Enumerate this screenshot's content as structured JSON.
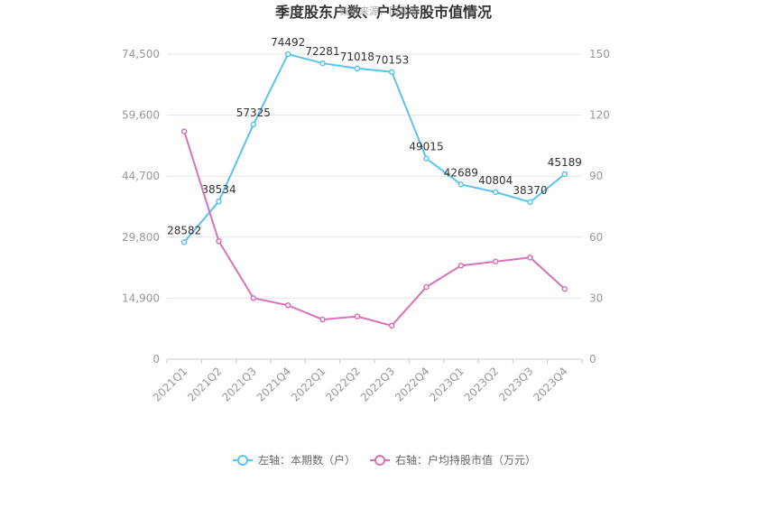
{
  "chart_data": {
    "type": "line",
    "title": "季度股东户数、户均持股市值情况",
    "watermark": "数据来源：同花顺",
    "categories": [
      "2021Q1",
      "2021Q2",
      "2021Q3",
      "2021Q4",
      "2022Q1",
      "2022Q2",
      "2022Q3",
      "2022Q4",
      "2023Q1",
      "2023Q2",
      "2023Q3",
      "2023Q4"
    ],
    "left_axis": {
      "ticks": [
        "0",
        "14,900",
        "29,800",
        "44,700",
        "59,600",
        "74,500"
      ],
      "ylim": [
        0,
        74500
      ]
    },
    "right_axis": {
      "ticks": [
        "0",
        "30",
        "60",
        "90",
        "120",
        "150"
      ],
      "ylim": [
        0,
        150
      ]
    },
    "series": [
      {
        "name": "左轴：本期数（户）",
        "axis": "left",
        "color": "#5bc3f0",
        "values": [
          28582,
          38534,
          57325,
          74492,
          72281,
          71018,
          70153,
          49015,
          42689,
          40804,
          38370,
          45189
        ],
        "labels": [
          "28582",
          "38534",
          "57325",
          "74492",
          "72281",
          "71018",
          "70153",
          "49015",
          "42689",
          "40804",
          "38370",
          "45189"
        ]
      },
      {
        "name": "右轴：户均持股市值（万元）",
        "axis": "right",
        "color": "#d872b8",
        "values": [
          112,
          58,
          30,
          26.5,
          19.5,
          21,
          16.5,
          35.5,
          46,
          48,
          50,
          34.5
        ]
      }
    ],
    "grid": true,
    "legend_position": "bottom"
  }
}
